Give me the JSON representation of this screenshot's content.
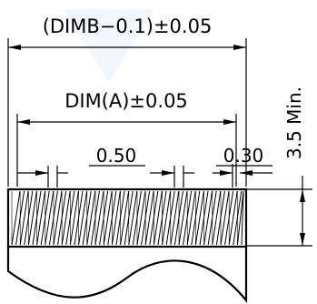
{
  "drawing": {
    "dimensions": {
      "overall_width": "(DIMB−0.1)±0.05",
      "contact_span": "DIM(A)±0.05",
      "pitch": "0.50",
      "contact_width": "0.30",
      "min_length": "3.5 Min."
    }
  }
}
